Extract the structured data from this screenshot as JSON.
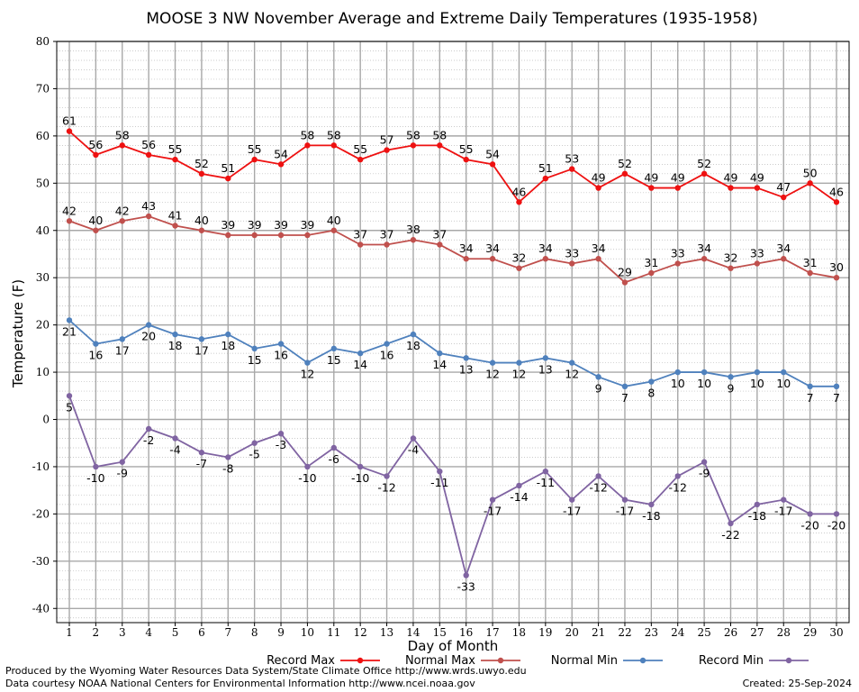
{
  "title": "MOOSE 3 NW November Average and Extreme Daily Temperatures (1935-1958)",
  "footer": {
    "line1": "Produced by the Wyoming Water Resources Data System/State Climate Office http://www.wrds.uwyo.edu",
    "line2": "Data courtesy NOAA National Centers for Environmental Information http://www.ncei.noaa.gov",
    "created": "Created:  25-Sep-2024"
  },
  "chart_data": {
    "type": "line",
    "title": "MOOSE 3 NW November Average and Extreme Daily Temperatures (1935-1958)",
    "xlabel": "Day of Month",
    "ylabel": "Temperature (F)",
    "xlim": [
      1,
      30
    ],
    "ylim": [
      -43,
      80
    ],
    "yticks": [
      -40,
      -30,
      -20,
      -10,
      0,
      10,
      20,
      30,
      40,
      50,
      60,
      70,
      80
    ],
    "x": [
      1,
      2,
      3,
      4,
      5,
      6,
      7,
      8,
      9,
      10,
      11,
      12,
      13,
      14,
      15,
      16,
      17,
      18,
      19,
      20,
      21,
      22,
      23,
      24,
      25,
      26,
      27,
      28,
      29,
      30
    ],
    "grid": true,
    "legend_position": "bottom",
    "series": [
      {
        "name": "Record Max",
        "color": "#ee1111",
        "label_position": "above",
        "values": [
          61,
          56,
          58,
          56,
          55,
          52,
          51,
          55,
          54,
          58,
          58,
          55,
          57,
          58,
          58,
          55,
          54,
          46,
          51,
          53,
          49,
          52,
          49,
          49,
          52,
          49,
          49,
          47,
          50,
          46
        ]
      },
      {
        "name": "Normal Max",
        "color": "#c0504d",
        "label_position": "above",
        "values": [
          42,
          40,
          42,
          43,
          41,
          40,
          39,
          39,
          39,
          39,
          40,
          37,
          37,
          38,
          37,
          34,
          34,
          32,
          34,
          33,
          34,
          29,
          31,
          33,
          34,
          32,
          33,
          34,
          31,
          30
        ]
      },
      {
        "name": "Normal Min",
        "color": "#4f81bd",
        "label_position": "below",
        "values": [
          21,
          16,
          17,
          20,
          18,
          17,
          18,
          15,
          16,
          12,
          15,
          14,
          16,
          18,
          14,
          13,
          12,
          12,
          13,
          12,
          9,
          7,
          8,
          10,
          10,
          9,
          10,
          10,
          7,
          7
        ]
      },
      {
        "name": "Record Min",
        "color": "#8064a2",
        "label_position": "below",
        "values": [
          5,
          -10,
          -9,
          -2,
          -4,
          -7,
          -8,
          -5,
          -3,
          -10,
          -6,
          -10,
          -12,
          -4,
          -11,
          -33,
          -17,
          -14,
          -11,
          -17,
          -12,
          -17,
          -18,
          -12,
          -9,
          -22,
          -18,
          -17,
          -20,
          -20
        ]
      }
    ]
  }
}
